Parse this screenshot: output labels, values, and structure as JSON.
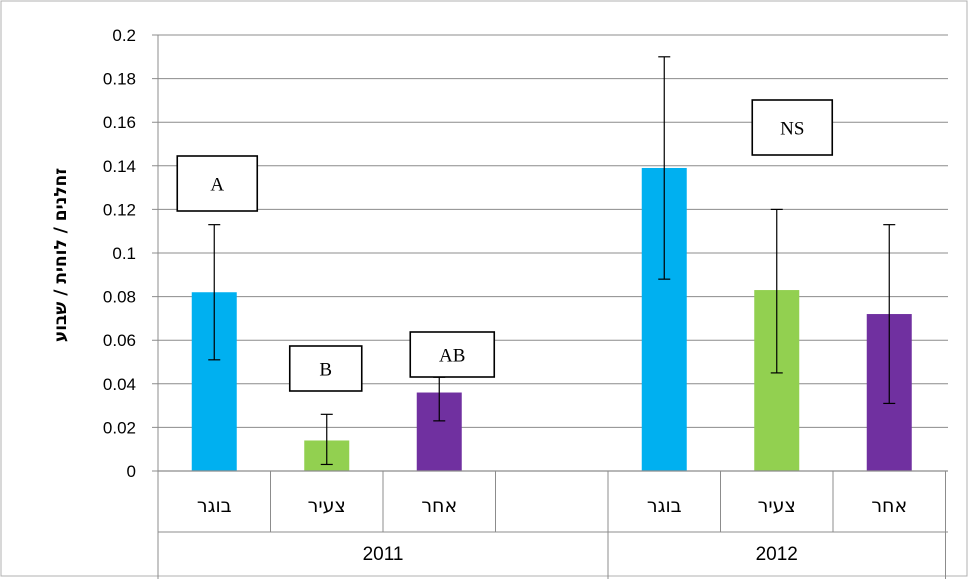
{
  "chart_data": {
    "type": "bar",
    "title": "",
    "ylabel": "זחלנים / לוחית / שבוע",
    "ylim": [
      0,
      0.2
    ],
    "yticks": [
      "0",
      "0.02",
      "0.04",
      "0.06",
      "0.08",
      "0.1",
      "0.12",
      "0.14",
      "0.16",
      "0.18",
      "0.2"
    ],
    "grid": true,
    "groups": [
      {
        "label": "2011",
        "categories": [
          "בוגר",
          "צעיר",
          "אחר",
          ""
        ],
        "values": [
          0.082,
          0.014,
          0.036,
          null
        ],
        "error_low": [
          0.051,
          0.003,
          0.023,
          null
        ],
        "error_high": [
          0.113,
          0.026,
          0.043,
          null
        ],
        "colors": [
          "#00B0F0",
          "#92D050",
          "#7030A0",
          null
        ],
        "annotations": [
          "A",
          "B",
          "AB",
          null
        ]
      },
      {
        "label": "2012",
        "categories": [
          "בוגר",
          "צעיר",
          "אחר"
        ],
        "values": [
          0.139,
          0.083,
          0.072
        ],
        "error_low": [
          0.088,
          0.045,
          0.031
        ],
        "error_high": [
          0.19,
          0.12,
          0.113
        ],
        "colors": [
          "#00B0F0",
          "#92D050",
          "#7030A0"
        ],
        "annotations": [
          "NS",
          null,
          null
        ]
      }
    ]
  }
}
